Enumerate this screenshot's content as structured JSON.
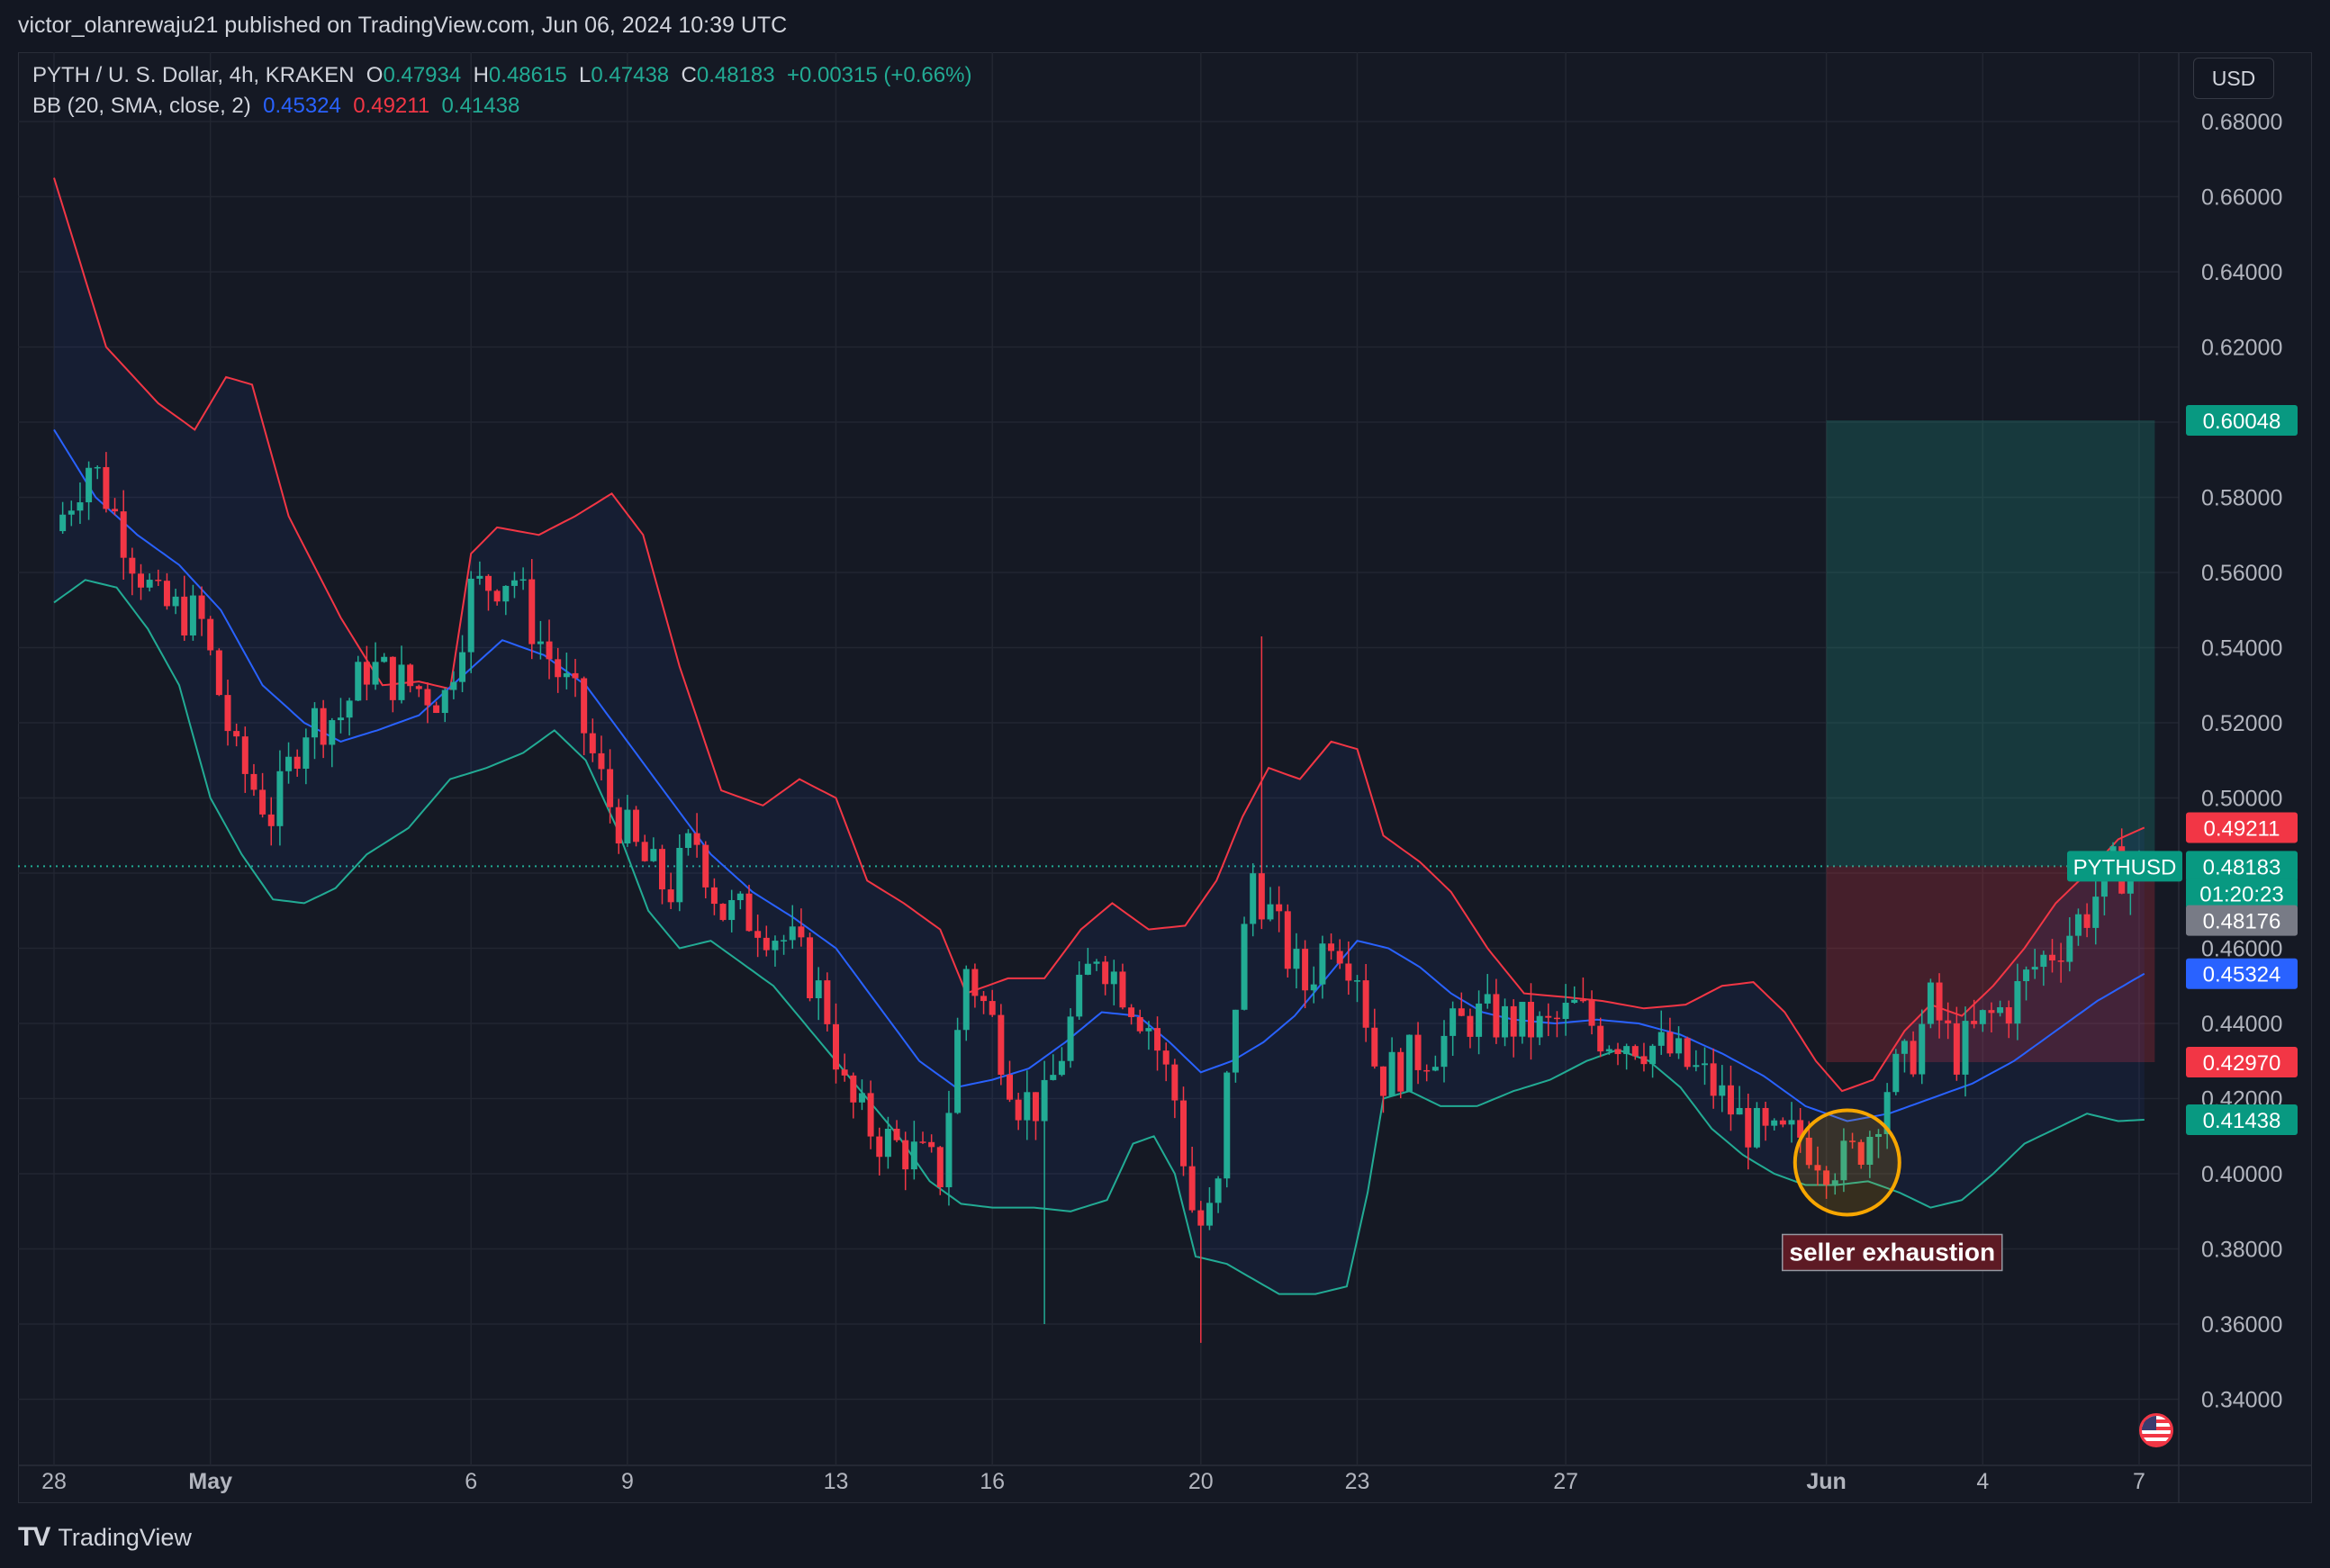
{
  "publisher": "victor_olanrewaju21 published on TradingView.com, Jun 06, 2024 10:39 UTC",
  "legend": {
    "symbol": "PYTH / U. S. Dollar, 4h, KRAKEN",
    "o_label": "O",
    "o": "0.47934",
    "h_label": "H",
    "h": "0.48615",
    "l_label": "L",
    "l": "0.47438",
    "c_label": "C",
    "c": "0.48183",
    "change": "+0.00315 (+0.66%)",
    "bb_label": "BB (20, SMA, close, 2)",
    "bb_mid": "0.45324",
    "bb_upper": "0.49211",
    "bb_lower": "0.41438"
  },
  "currency_button": "USD",
  "footer": {
    "logo": "TV",
    "brand": "TradingView"
  },
  "colors": {
    "background": "#131722",
    "up": "#22ab94",
    "down": "#f23645",
    "bb_upper": "#f23645",
    "bb_mid": "#2962ff",
    "bb_lower": "#22ab94",
    "annotation_circle": "#f7a600"
  },
  "chart_data": {
    "type": "candlestick",
    "symbol": "PYTHUSD",
    "timeframe": "4h",
    "ylim": [
      0.33,
      0.69
    ],
    "y_ticks": [
      "0.68000",
      "0.66000",
      "0.64000",
      "0.62000",
      "0.60000",
      "0.58000",
      "0.56000",
      "0.54000",
      "0.52000",
      "0.50000",
      "0.48000",
      "0.46000",
      "0.44000",
      "0.42000",
      "0.40000",
      "0.38000",
      "0.36000",
      "0.34000"
    ],
    "x_ticks": [
      {
        "label": "28",
        "day": 0
      },
      {
        "label": "May",
        "day": 3
      },
      {
        "label": "6",
        "day": 8
      },
      {
        "label": "9",
        "day": 11
      },
      {
        "label": "13",
        "day": 15
      },
      {
        "label": "16",
        "day": 18
      },
      {
        "label": "20",
        "day": 22
      },
      {
        "label": "23",
        "day": 25
      },
      {
        "label": "27",
        "day": 29
      },
      {
        "label": "Jun",
        "day": 34
      },
      {
        "label": "4",
        "day": 37
      },
      {
        "label": "7",
        "day": 40
      }
    ],
    "last_price": 0.48183,
    "price_labels": [
      {
        "text": "0.60048",
        "value": 0.60048,
        "kind": "target"
      },
      {
        "text": "0.49211",
        "value": 0.49211,
        "kind": "bb_upper"
      },
      {
        "text": "PYTHUSD",
        "value": 0.48183,
        "kind": "symbol"
      },
      {
        "text": "0.48183",
        "value": 0.48183,
        "kind": "last"
      },
      {
        "text": "01:20:23",
        "value": 0.48183,
        "kind": "countdown"
      },
      {
        "text": "0.48176",
        "value": 0.48176,
        "kind": "prev"
      },
      {
        "text": "0.45324",
        "value": 0.45324,
        "kind": "bb_mid"
      },
      {
        "text": "0.42970",
        "value": 0.4297,
        "kind": "stop"
      },
      {
        "text": "0.41438",
        "value": 0.41438,
        "kind": "bb_lower"
      }
    ],
    "position": {
      "entry": 0.48183,
      "target": 0.60048,
      "stop": 0.4297,
      "day_start": 34.0,
      "day_end": 40.3
    },
    "annotation": {
      "text": "seller exhaustion",
      "day": 34.4,
      "price": 0.403
    },
    "close_path": [
      {
        "day": 0.0,
        "value": 0.571
      },
      {
        "day": 0.7,
        "value": 0.59
      },
      {
        "day": 1.5,
        "value": 0.565
      },
      {
        "day": 2.0,
        "value": 0.551
      },
      {
        "day": 2.8,
        "value": 0.548
      },
      {
        "day": 3.5,
        "value": 0.51
      },
      {
        "day": 4.2,
        "value": 0.495
      },
      {
        "day": 4.8,
        "value": 0.52
      },
      {
        "day": 5.5,
        "value": 0.522
      },
      {
        "day": 6.0,
        "value": 0.535
      },
      {
        "day": 6.8,
        "value": 0.53
      },
      {
        "day": 7.5,
        "value": 0.527
      },
      {
        "day": 8.0,
        "value": 0.555
      },
      {
        "day": 8.8,
        "value": 0.56
      },
      {
        "day": 9.2,
        "value": 0.545
      },
      {
        "day": 10.0,
        "value": 0.525
      },
      {
        "day": 10.6,
        "value": 0.5
      },
      {
        "day": 11.2,
        "value": 0.485
      },
      {
        "day": 11.8,
        "value": 0.475
      },
      {
        "day": 12.3,
        "value": 0.49
      },
      {
        "day": 12.8,
        "value": 0.47
      },
      {
        "day": 13.5,
        "value": 0.468
      },
      {
        "day": 14.2,
        "value": 0.46
      },
      {
        "day": 14.8,
        "value": 0.445
      },
      {
        "day": 15.2,
        "value": 0.42
      },
      {
        "day": 15.8,
        "value": 0.41
      },
      {
        "day": 16.5,
        "value": 0.405
      },
      {
        "day": 17.0,
        "value": 0.4
      },
      {
        "day": 17.5,
        "value": 0.455
      },
      {
        "day": 18.0,
        "value": 0.44
      },
      {
        "day": 18.5,
        "value": 0.42
      },
      {
        "day": 19.0,
        "value": 0.418
      },
      {
        "day": 19.5,
        "value": 0.44
      },
      {
        "day": 20.0,
        "value": 0.46
      },
      {
        "day": 20.5,
        "value": 0.45
      },
      {
        "day": 21.0,
        "value": 0.44
      },
      {
        "day": 21.5,
        "value": 0.42
      },
      {
        "day": 21.9,
        "value": 0.385
      },
      {
        "day": 22.3,
        "value": 0.39
      },
      {
        "day": 22.6,
        "value": 0.44
      },
      {
        "day": 23.0,
        "value": 0.48
      },
      {
        "day": 23.3,
        "value": 0.47
      },
      {
        "day": 23.6,
        "value": 0.46
      },
      {
        "day": 24.0,
        "value": 0.45
      },
      {
        "day": 24.5,
        "value": 0.465
      },
      {
        "day": 25.0,
        "value": 0.455
      },
      {
        "day": 25.4,
        "value": 0.425
      },
      {
        "day": 26.0,
        "value": 0.43
      },
      {
        "day": 26.6,
        "value": 0.435
      },
      {
        "day": 27.2,
        "value": 0.442
      },
      {
        "day": 28.0,
        "value": 0.44
      },
      {
        "day": 28.6,
        "value": 0.438
      },
      {
        "day": 29.2,
        "value": 0.444
      },
      {
        "day": 29.7,
        "value": 0.437
      },
      {
        "day": 30.3,
        "value": 0.436
      },
      {
        "day": 31.0,
        "value": 0.432
      },
      {
        "day": 31.7,
        "value": 0.425
      },
      {
        "day": 32.3,
        "value": 0.415
      },
      {
        "day": 32.9,
        "value": 0.408
      },
      {
        "day": 33.5,
        "value": 0.41
      },
      {
        "day": 34.0,
        "value": 0.404
      },
      {
        "day": 34.4,
        "value": 0.403
      },
      {
        "day": 34.8,
        "value": 0.41
      },
      {
        "day": 35.2,
        "value": 0.425
      },
      {
        "day": 35.6,
        "value": 0.43
      },
      {
        "day": 36.0,
        "value": 0.445
      },
      {
        "day": 36.5,
        "value": 0.432
      },
      {
        "day": 37.0,
        "value": 0.44
      },
      {
        "day": 37.5,
        "value": 0.445
      },
      {
        "day": 38.0,
        "value": 0.455
      },
      {
        "day": 38.5,
        "value": 0.462
      },
      {
        "day": 39.0,
        "value": 0.47
      },
      {
        "day": 39.4,
        "value": 0.48
      },
      {
        "day": 39.8,
        "value": 0.482
      },
      {
        "day": 40.1,
        "value": 0.48183
      }
    ],
    "bb_upper": [
      {
        "day": 0.0,
        "value": 0.665
      },
      {
        "day": 1.0,
        "value": 0.62
      },
      {
        "day": 2.0,
        "value": 0.605
      },
      {
        "day": 2.7,
        "value": 0.598
      },
      {
        "day": 3.3,
        "value": 0.612
      },
      {
        "day": 3.8,
        "value": 0.61
      },
      {
        "day": 4.5,
        "value": 0.575
      },
      {
        "day": 5.5,
        "value": 0.548
      },
      {
        "day": 6.3,
        "value": 0.53
      },
      {
        "day": 7.0,
        "value": 0.531
      },
      {
        "day": 7.6,
        "value": 0.529
      },
      {
        "day": 8.0,
        "value": 0.565
      },
      {
        "day": 8.5,
        "value": 0.572
      },
      {
        "day": 9.3,
        "value": 0.57
      },
      {
        "day": 10.0,
        "value": 0.575
      },
      {
        "day": 10.7,
        "value": 0.581
      },
      {
        "day": 11.3,
        "value": 0.57
      },
      {
        "day": 12.0,
        "value": 0.535
      },
      {
        "day": 12.8,
        "value": 0.502
      },
      {
        "day": 13.6,
        "value": 0.498
      },
      {
        "day": 14.3,
        "value": 0.505
      },
      {
        "day": 15.0,
        "value": 0.5
      },
      {
        "day": 15.6,
        "value": 0.478
      },
      {
        "day": 16.3,
        "value": 0.472
      },
      {
        "day": 17.0,
        "value": 0.465
      },
      {
        "day": 17.5,
        "value": 0.448
      },
      {
        "day": 18.3,
        "value": 0.452
      },
      {
        "day": 19.0,
        "value": 0.452
      },
      {
        "day": 19.7,
        "value": 0.465
      },
      {
        "day": 20.3,
        "value": 0.472
      },
      {
        "day": 21.0,
        "value": 0.465
      },
      {
        "day": 21.7,
        "value": 0.466
      },
      {
        "day": 22.3,
        "value": 0.478
      },
      {
        "day": 22.8,
        "value": 0.495
      },
      {
        "day": 23.3,
        "value": 0.508
      },
      {
        "day": 23.9,
        "value": 0.505
      },
      {
        "day": 24.5,
        "value": 0.515
      },
      {
        "day": 25.0,
        "value": 0.513
      },
      {
        "day": 25.5,
        "value": 0.49
      },
      {
        "day": 26.2,
        "value": 0.483
      },
      {
        "day": 26.8,
        "value": 0.475
      },
      {
        "day": 27.5,
        "value": 0.46
      },
      {
        "day": 28.2,
        "value": 0.448
      },
      {
        "day": 29.0,
        "value": 0.447
      },
      {
        "day": 29.7,
        "value": 0.446
      },
      {
        "day": 30.5,
        "value": 0.444
      },
      {
        "day": 31.3,
        "value": 0.445
      },
      {
        "day": 32.0,
        "value": 0.45
      },
      {
        "day": 32.6,
        "value": 0.451
      },
      {
        "day": 33.2,
        "value": 0.443
      },
      {
        "day": 33.8,
        "value": 0.43
      },
      {
        "day": 34.3,
        "value": 0.422
      },
      {
        "day": 34.9,
        "value": 0.425
      },
      {
        "day": 35.5,
        "value": 0.438
      },
      {
        "day": 36.0,
        "value": 0.445
      },
      {
        "day": 36.6,
        "value": 0.442
      },
      {
        "day": 37.2,
        "value": 0.45
      },
      {
        "day": 37.8,
        "value": 0.46
      },
      {
        "day": 38.4,
        "value": 0.472
      },
      {
        "day": 39.0,
        "value": 0.48
      },
      {
        "day": 39.6,
        "value": 0.489
      },
      {
        "day": 40.1,
        "value": 0.49211
      }
    ],
    "bb_mid": [
      {
        "day": 0.0,
        "value": 0.598
      },
      {
        "day": 0.8,
        "value": 0.58
      },
      {
        "day": 1.6,
        "value": 0.57
      },
      {
        "day": 2.4,
        "value": 0.562
      },
      {
        "day": 3.2,
        "value": 0.55
      },
      {
        "day": 4.0,
        "value": 0.53
      },
      {
        "day": 4.8,
        "value": 0.52
      },
      {
        "day": 5.5,
        "value": 0.515
      },
      {
        "day": 6.2,
        "value": 0.518
      },
      {
        "day": 7.0,
        "value": 0.522
      },
      {
        "day": 7.8,
        "value": 0.532
      },
      {
        "day": 8.6,
        "value": 0.542
      },
      {
        "day": 9.4,
        "value": 0.538
      },
      {
        "day": 10.2,
        "value": 0.53
      },
      {
        "day": 11.0,
        "value": 0.515
      },
      {
        "day": 11.8,
        "value": 0.5
      },
      {
        "day": 12.6,
        "value": 0.485
      },
      {
        "day": 13.4,
        "value": 0.475
      },
      {
        "day": 14.2,
        "value": 0.468
      },
      {
        "day": 15.0,
        "value": 0.46
      },
      {
        "day": 15.8,
        "value": 0.445
      },
      {
        "day": 16.6,
        "value": 0.43
      },
      {
        "day": 17.3,
        "value": 0.423
      },
      {
        "day": 18.0,
        "value": 0.425
      },
      {
        "day": 18.7,
        "value": 0.428
      },
      {
        "day": 19.4,
        "value": 0.435
      },
      {
        "day": 20.1,
        "value": 0.443
      },
      {
        "day": 20.8,
        "value": 0.442
      },
      {
        "day": 21.4,
        "value": 0.435
      },
      {
        "day": 22.0,
        "value": 0.427
      },
      {
        "day": 22.6,
        "value": 0.43
      },
      {
        "day": 23.2,
        "value": 0.435
      },
      {
        "day": 23.8,
        "value": 0.442
      },
      {
        "day": 24.4,
        "value": 0.452
      },
      {
        "day": 25.0,
        "value": 0.462
      },
      {
        "day": 25.6,
        "value": 0.46
      },
      {
        "day": 26.2,
        "value": 0.455
      },
      {
        "day": 26.8,
        "value": 0.448
      },
      {
        "day": 27.4,
        "value": 0.443
      },
      {
        "day": 28.0,
        "value": 0.441
      },
      {
        "day": 28.8,
        "value": 0.44
      },
      {
        "day": 29.6,
        "value": 0.441
      },
      {
        "day": 30.4,
        "value": 0.44
      },
      {
        "day": 31.2,
        "value": 0.437
      },
      {
        "day": 32.0,
        "value": 0.432
      },
      {
        "day": 32.8,
        "value": 0.426
      },
      {
        "day": 33.6,
        "value": 0.418
      },
      {
        "day": 34.4,
        "value": 0.414
      },
      {
        "day": 35.2,
        "value": 0.416
      },
      {
        "day": 36.0,
        "value": 0.42
      },
      {
        "day": 36.8,
        "value": 0.424
      },
      {
        "day": 37.6,
        "value": 0.43
      },
      {
        "day": 38.4,
        "value": 0.438
      },
      {
        "day": 39.2,
        "value": 0.446
      },
      {
        "day": 40.1,
        "value": 0.45324
      }
    ],
    "bb_lower": [
      {
        "day": 0.0,
        "value": 0.552
      },
      {
        "day": 0.6,
        "value": 0.558
      },
      {
        "day": 1.2,
        "value": 0.556
      },
      {
        "day": 1.8,
        "value": 0.545
      },
      {
        "day": 2.4,
        "value": 0.53
      },
      {
        "day": 3.0,
        "value": 0.5
      },
      {
        "day": 3.6,
        "value": 0.485
      },
      {
        "day": 4.2,
        "value": 0.473
      },
      {
        "day": 4.8,
        "value": 0.472
      },
      {
        "day": 5.4,
        "value": 0.476
      },
      {
        "day": 6.0,
        "value": 0.485
      },
      {
        "day": 6.8,
        "value": 0.492
      },
      {
        "day": 7.6,
        "value": 0.505
      },
      {
        "day": 8.3,
        "value": 0.508
      },
      {
        "day": 9.0,
        "value": 0.512
      },
      {
        "day": 9.6,
        "value": 0.518
      },
      {
        "day": 10.2,
        "value": 0.51
      },
      {
        "day": 10.8,
        "value": 0.492
      },
      {
        "day": 11.4,
        "value": 0.47
      },
      {
        "day": 12.0,
        "value": 0.46
      },
      {
        "day": 12.6,
        "value": 0.462
      },
      {
        "day": 13.2,
        "value": 0.456
      },
      {
        "day": 13.8,
        "value": 0.45
      },
      {
        "day": 14.4,
        "value": 0.44
      },
      {
        "day": 15.0,
        "value": 0.43
      },
      {
        "day": 15.6,
        "value": 0.42
      },
      {
        "day": 16.2,
        "value": 0.41
      },
      {
        "day": 16.8,
        "value": 0.398
      },
      {
        "day": 17.4,
        "value": 0.392
      },
      {
        "day": 18.0,
        "value": 0.391
      },
      {
        "day": 18.8,
        "value": 0.391
      },
      {
        "day": 19.5,
        "value": 0.39
      },
      {
        "day": 20.2,
        "value": 0.393
      },
      {
        "day": 20.7,
        "value": 0.408
      },
      {
        "day": 21.1,
        "value": 0.41
      },
      {
        "day": 21.5,
        "value": 0.4
      },
      {
        "day": 21.9,
        "value": 0.378
      },
      {
        "day": 22.5,
        "value": 0.376
      },
      {
        "day": 23.0,
        "value": 0.372
      },
      {
        "day": 23.5,
        "value": 0.368
      },
      {
        "day": 24.2,
        "value": 0.368
      },
      {
        "day": 24.8,
        "value": 0.37
      },
      {
        "day": 25.2,
        "value": 0.395
      },
      {
        "day": 25.5,
        "value": 0.42
      },
      {
        "day": 26.0,
        "value": 0.422
      },
      {
        "day": 26.6,
        "value": 0.418
      },
      {
        "day": 27.3,
        "value": 0.418
      },
      {
        "day": 28.0,
        "value": 0.422
      },
      {
        "day": 28.7,
        "value": 0.425
      },
      {
        "day": 29.4,
        "value": 0.43
      },
      {
        "day": 30.0,
        "value": 0.433
      },
      {
        "day": 30.6,
        "value": 0.43
      },
      {
        "day": 31.2,
        "value": 0.423
      },
      {
        "day": 31.8,
        "value": 0.412
      },
      {
        "day": 32.4,
        "value": 0.405
      },
      {
        "day": 33.0,
        "value": 0.4
      },
      {
        "day": 33.6,
        "value": 0.397
      },
      {
        "day": 34.2,
        "value": 0.397
      },
      {
        "day": 34.8,
        "value": 0.398
      },
      {
        "day": 35.4,
        "value": 0.395
      },
      {
        "day": 36.0,
        "value": 0.391
      },
      {
        "day": 36.6,
        "value": 0.393
      },
      {
        "day": 37.2,
        "value": 0.4
      },
      {
        "day": 37.8,
        "value": 0.408
      },
      {
        "day": 38.4,
        "value": 0.412
      },
      {
        "day": 39.0,
        "value": 0.416
      },
      {
        "day": 39.6,
        "value": 0.414
      },
      {
        "day": 40.1,
        "value": 0.41438
      }
    ]
  }
}
